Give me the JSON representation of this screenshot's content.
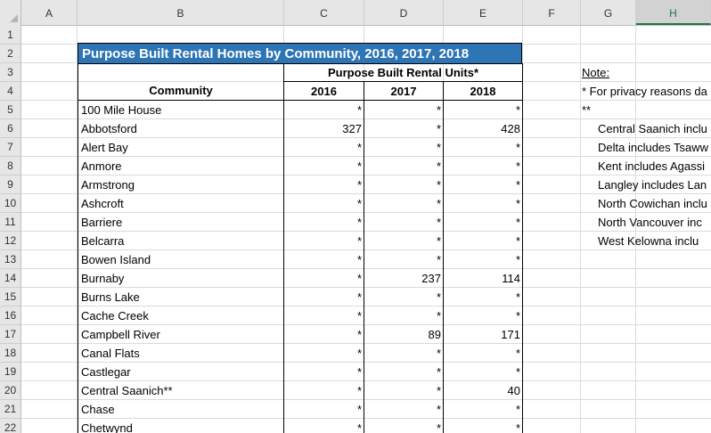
{
  "columns": [
    "A",
    "B",
    "C",
    "D",
    "E",
    "F",
    "G",
    "H"
  ],
  "selected_column": "H",
  "rows": [
    "1",
    "2",
    "3",
    "4",
    "5",
    "6",
    "7",
    "8",
    "9",
    "10",
    "11",
    "12",
    "13",
    "14",
    "15",
    "16",
    "17",
    "18",
    "19",
    "20",
    "21",
    "22"
  ],
  "table": {
    "title": "Purpose Built Rental Homes by Community, 2016, 2017, 2018",
    "group_header": "Purpose Built Rental Units*",
    "community_header": "Community",
    "year_headers": [
      "2016",
      "2017",
      "2018"
    ],
    "data_rows": [
      {
        "community": "100 Mile House",
        "v2016": "*",
        "v2017": "*",
        "v2018": "*"
      },
      {
        "community": "Abbotsford",
        "v2016": "327",
        "v2017": "*",
        "v2018": "428"
      },
      {
        "community": "Alert Bay",
        "v2016": "*",
        "v2017": "*",
        "v2018": "*"
      },
      {
        "community": "Anmore",
        "v2016": "*",
        "v2017": "*",
        "v2018": "*"
      },
      {
        "community": "Armstrong",
        "v2016": "*",
        "v2017": "*",
        "v2018": "*"
      },
      {
        "community": "Ashcroft",
        "v2016": "*",
        "v2017": "*",
        "v2018": "*"
      },
      {
        "community": "Barriere",
        "v2016": "*",
        "v2017": "*",
        "v2018": "*"
      },
      {
        "community": "Belcarra",
        "v2016": "*",
        "v2017": "*",
        "v2018": "*"
      },
      {
        "community": "Bowen Island",
        "v2016": "*",
        "v2017": "*",
        "v2018": "*"
      },
      {
        "community": "Burnaby",
        "v2016": "*",
        "v2017": "237",
        "v2018": "114"
      },
      {
        "community": "Burns Lake",
        "v2016": "*",
        "v2017": "*",
        "v2018": "*"
      },
      {
        "community": "Cache Creek",
        "v2016": "*",
        "v2017": "*",
        "v2018": "*"
      },
      {
        "community": "Campbell River",
        "v2016": "*",
        "v2017": "89",
        "v2018": "171"
      },
      {
        "community": "Canal Flats",
        "v2016": "*",
        "v2017": "*",
        "v2018": "*"
      },
      {
        "community": "Castlegar",
        "v2016": "*",
        "v2017": "*",
        "v2018": "*"
      },
      {
        "community": "Central Saanich**",
        "v2016": "*",
        "v2017": "*",
        "v2018": "40"
      },
      {
        "community": "Chase",
        "v2016": "*",
        "v2017": "*",
        "v2018": "*"
      },
      {
        "community": "Chetwynd",
        "v2016": "*",
        "v2017": "*",
        "v2018": "*"
      }
    ]
  },
  "notes": {
    "heading": "Note:",
    "line1": "* For privacy reasons da",
    "line2": "**",
    "items": [
      "Central Saanich inclu",
      "Delta includes Tsaww",
      "Kent includes Agassi",
      "Langley includes Lan",
      "North Cowichan inclu",
      "North Vancouver inc",
      "West  Kelowna inclu"
    ]
  }
}
